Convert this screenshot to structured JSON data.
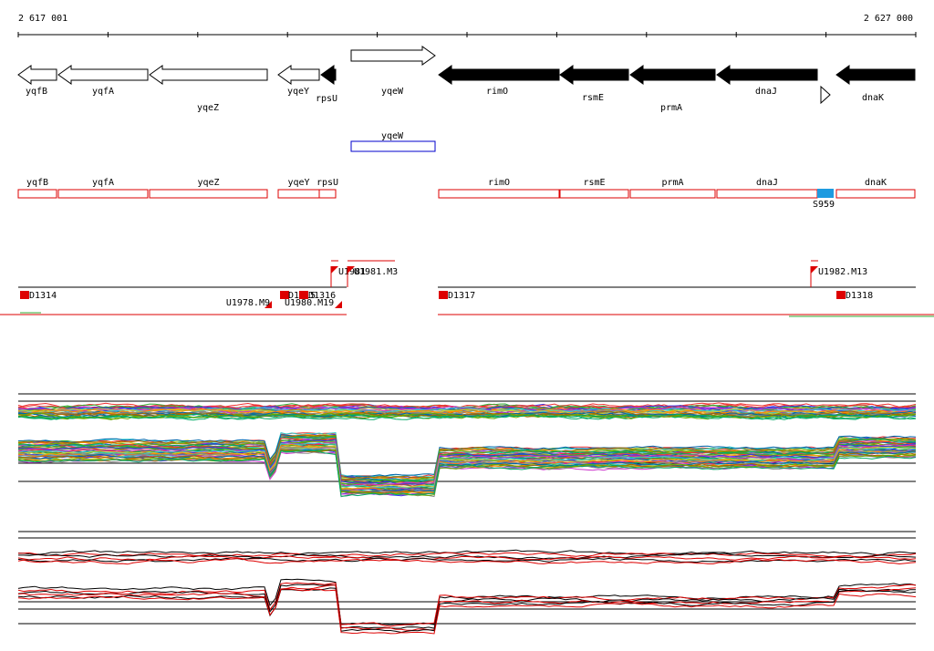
{
  "ruler": {
    "start": "2 617 001",
    "end": "2 627 000"
  },
  "genes": [
    "yqfB",
    "yqfA",
    "yqeZ",
    "yqeY",
    "rpsU",
    "yqeW",
    "rimO",
    "rsmE",
    "prmA",
    "dnaJ",
    "dnaK"
  ],
  "operons": [
    "yqeW"
  ],
  "transcripts": [
    "yqfB",
    "yqfA",
    "yqeZ",
    "yqeY",
    "rpsU",
    "rimO",
    "rsmE",
    "prmA",
    "dnaJ",
    "dnaK"
  ],
  "feature": "S959",
  "upper_sites": [
    "U1981",
    "U1981.M3",
    "U1982.M13"
  ],
  "lower_sites": [
    "D1314",
    "U1978.M9",
    "D1315",
    "D1316",
    "U1980.M19",
    "D1317",
    "D1318"
  ]
}
